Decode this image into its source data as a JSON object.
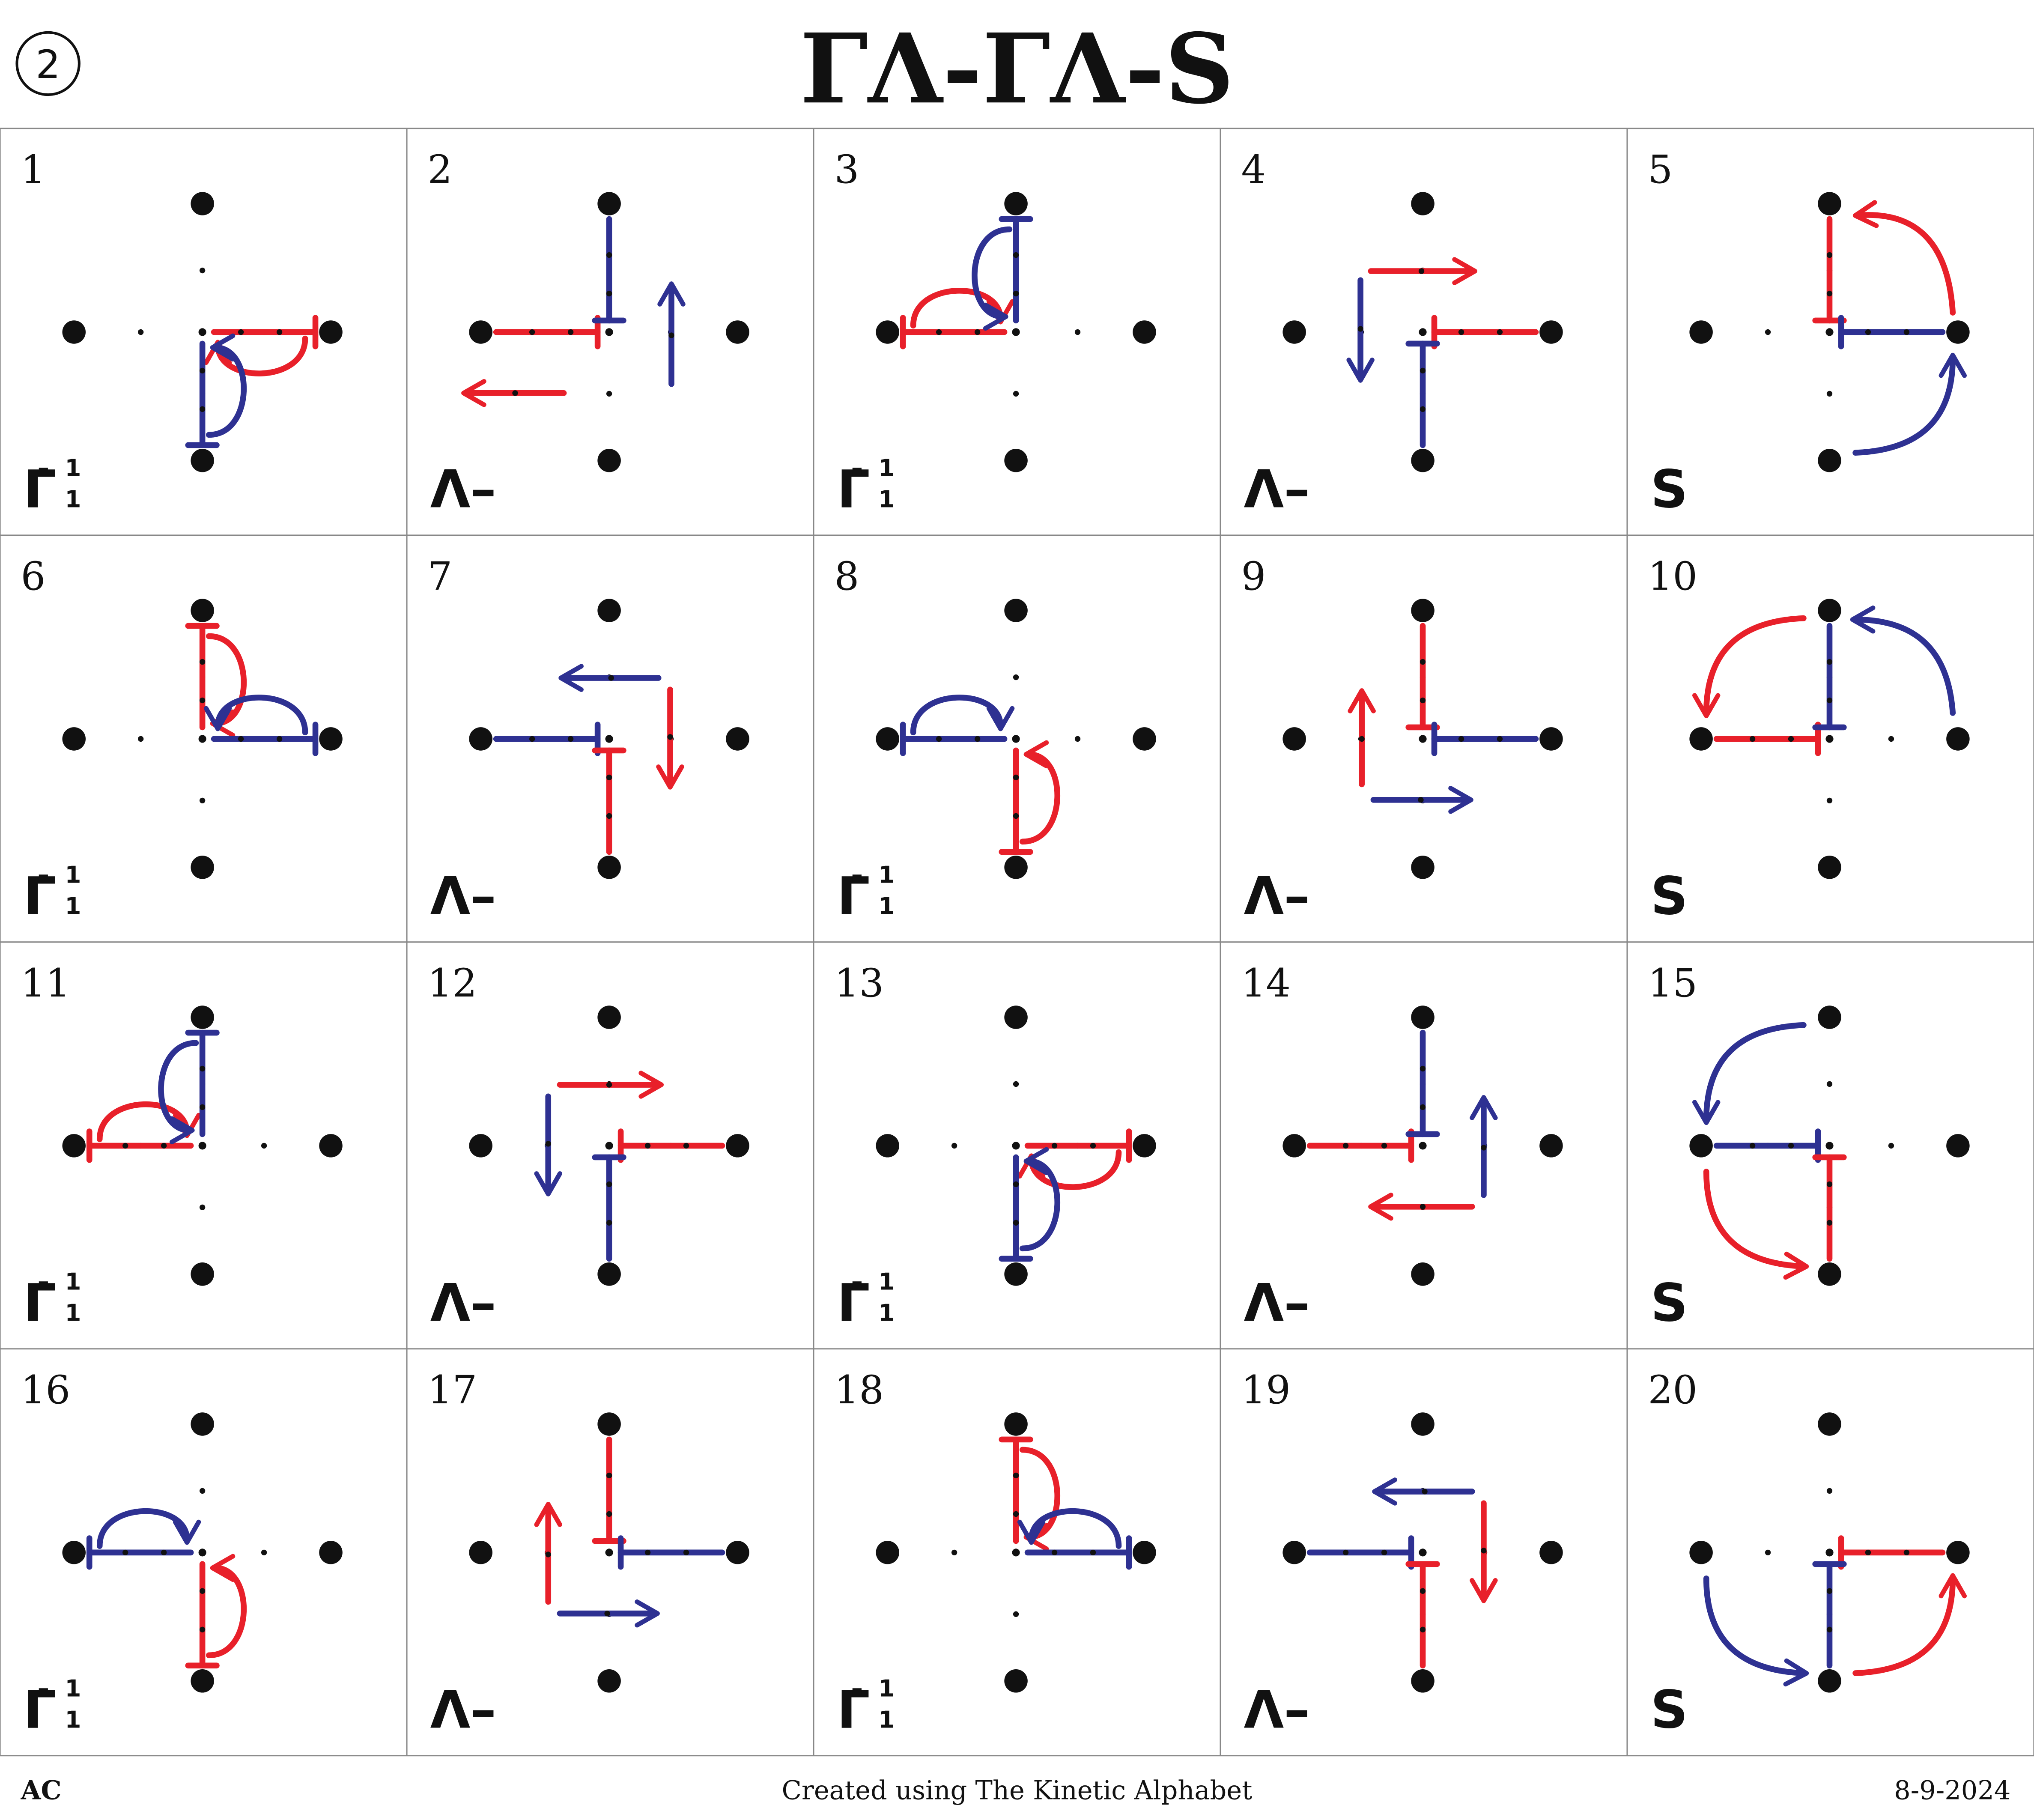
{
  "header": {
    "sheet_number": "2",
    "title": "ΓΛ-ΓΛ-S"
  },
  "footer": {
    "left": "AC",
    "center": "Created using The Kinetic Alphabet",
    "right": "8-9-2024"
  },
  "colors": {
    "red": "#e8202a",
    "blue": "#2e3192",
    "ink": "#111111",
    "grid": "#888888"
  },
  "grid": {
    "columns": 5,
    "rows": 4
  },
  "cells": [
    {
      "number": "1",
      "label": "Γ̇",
      "label_sup": "1",
      "label_sub": "1"
    },
    {
      "number": "2",
      "label": "Λ–",
      "label_sup": "",
      "label_sub": ""
    },
    {
      "number": "3",
      "label": "Γ̇",
      "label_sup": "1",
      "label_sub": "1"
    },
    {
      "number": "4",
      "label": "Λ–",
      "label_sup": "",
      "label_sub": ""
    },
    {
      "number": "5",
      "label": "S",
      "label_sup": "",
      "label_sub": ""
    },
    {
      "number": "6",
      "label": "Γ̇",
      "label_sup": "1",
      "label_sub": "1"
    },
    {
      "number": "7",
      "label": "Λ–",
      "label_sup": "",
      "label_sub": ""
    },
    {
      "number": "8",
      "label": "Γ̇",
      "label_sup": "1",
      "label_sub": "1"
    },
    {
      "number": "9",
      "label": "Λ–",
      "label_sup": "",
      "label_sub": ""
    },
    {
      "number": "10",
      "label": "S",
      "label_sup": "",
      "label_sub": ""
    },
    {
      "number": "11",
      "label": "Γ̇",
      "label_sup": "1",
      "label_sub": "1"
    },
    {
      "number": "12",
      "label": "Λ–",
      "label_sup": "",
      "label_sub": ""
    },
    {
      "number": "13",
      "label": "Γ̇",
      "label_sup": "1",
      "label_sub": "1"
    },
    {
      "number": "14",
      "label": "Λ–",
      "label_sup": "",
      "label_sub": ""
    },
    {
      "number": "15",
      "label": "S",
      "label_sup": "",
      "label_sub": ""
    },
    {
      "number": "16",
      "label": "Γ̇",
      "label_sup": "1",
      "label_sub": "1"
    },
    {
      "number": "17",
      "label": "Λ–",
      "label_sup": "",
      "label_sub": ""
    },
    {
      "number": "18",
      "label": "Γ̇",
      "label_sup": "1",
      "label_sub": "1"
    },
    {
      "number": "19",
      "label": "Λ–",
      "label_sup": "",
      "label_sub": ""
    },
    {
      "number": "20",
      "label": "S",
      "label_sup": "",
      "label_sub": ""
    }
  ]
}
